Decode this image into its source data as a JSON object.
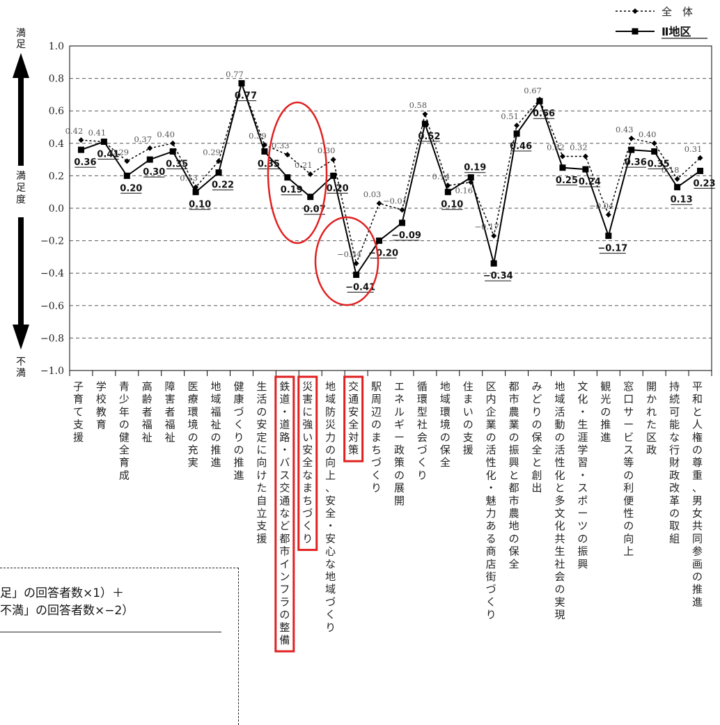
{
  "chart_data": {
    "type": "line",
    "ylim": [
      -1.0,
      1.0
    ],
    "yticks": [
      "1.0",
      "0.8",
      "0.6",
      "0.4",
      "0.2",
      "0.0",
      "−0.2",
      "−0.4",
      "−0.6",
      "−0.8",
      "−1.0"
    ],
    "ytick_values": [
      1.0,
      0.8,
      0.6,
      0.4,
      0.2,
      0.0,
      -0.2,
      -0.4,
      -0.6,
      -0.8,
      -1.0
    ],
    "grid": "horizontal-dashed",
    "legend_position": "top-right",
    "categories": [
      "子育て支援",
      "学校教育",
      "青少年の健全育成",
      "高齢者福祉",
      "障害者福祉",
      "医療環境の充実",
      "地域福祉の推進",
      "健康づくりの推進",
      "生活の安定に向けた自立支援",
      "鉄道・道路・バス交通など都市インフラの整備",
      "災害に強い安全なまちづくり",
      "地域防災力の向上、安全・安心な地域づくり",
      "交通安全対策",
      "駅周辺のまちづくり",
      "エネルギー政策の展開",
      "循環型社会づくり",
      "地域環境の保全",
      "住まいの支援",
      "区内企業の活性化・魅力ある商店街づくり",
      "都市農業の振興と都市農地の保全",
      "みどりの保全と創出",
      "地域活動の活性化と多文化共生社会の実現",
      "文化・生涯学習・スポーツの振興",
      "観光の推進",
      "窓口サービス等の利便性の向上",
      "開かれた区政",
      "持続可能な行財政改革の取組",
      "平和と人権の尊重、男女共同参画の推進"
    ],
    "series": [
      {
        "name": "全　体",
        "style": "dotted-diamond",
        "values": [
          0.42,
          0.41,
          0.29,
          0.37,
          0.4,
          0.13,
          0.29,
          0.77,
          0.39,
          0.33,
          0.21,
          0.3,
          -0.34,
          0.03,
          -0.01,
          0.58,
          0.14,
          0.16,
          -0.17,
          0.51,
          0.67,
          0.32,
          0.32,
          -0.04,
          0.43,
          0.4,
          0.18,
          0.31
        ],
        "labels": [
          "0.42",
          "0.41",
          "0.29",
          "0.37",
          "0.40",
          "0.13",
          "0.29",
          "0.77",
          "0.39",
          "0.33",
          "0.21",
          "0.30",
          "−0.34",
          "0.03",
          "−0.01",
          "0.58",
          "0.14",
          "0.16",
          "−0.17",
          "0.51",
          "0.67",
          "0.32",
          "0.32",
          "−0.04",
          "0.43",
          "0.40",
          "0.18",
          "0.31"
        ]
      },
      {
        "name": "Ⅱ地区",
        "style": "solid-square",
        "values": [
          0.36,
          0.41,
          0.2,
          0.3,
          0.35,
          0.1,
          0.22,
          0.77,
          0.35,
          0.19,
          0.07,
          0.2,
          -0.41,
          -0.2,
          -0.09,
          0.52,
          0.1,
          0.19,
          -0.34,
          0.46,
          0.66,
          0.25,
          0.24,
          -0.17,
          0.36,
          0.35,
          0.13,
          0.23
        ],
        "labels": [
          "0.36",
          "0.41",
          "0.20",
          "0.30",
          "0.35",
          "0.10",
          "0.22",
          "0.77",
          "0.35",
          "0.19",
          "0.07",
          "0.20",
          "−0.41",
          "−0.20",
          "−0.09",
          "0.52",
          "0.10",
          "0.19",
          "−0.34",
          "0.46",
          "0.66",
          "0.25",
          "0.24",
          "−0.17",
          "0.36",
          "0.35",
          "0.13",
          "0.23"
        ]
      }
    ],
    "side_labels": {
      "top": "満足",
      "middle": "満足度",
      "bottom": "不満"
    },
    "annotations": {
      "highlight_color": "#e02020"
    }
  },
  "note": {
    "line1": "足」の回答者数×1）＋",
    "line2": "不満」の回答者数×−2）"
  },
  "colors": {
    "line": "#000000",
    "grid": "#555555",
    "highlight": "#e02020"
  }
}
